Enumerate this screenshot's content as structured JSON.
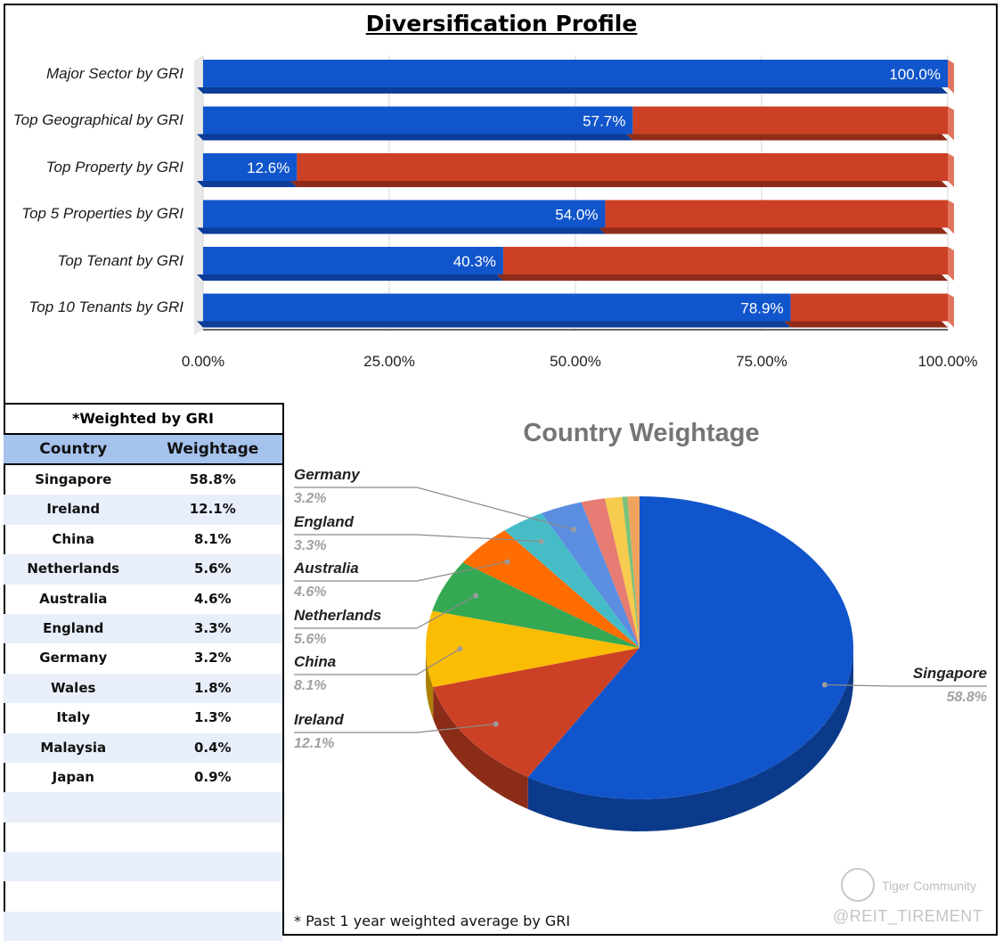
{
  "chart_data": [
    {
      "type": "bar",
      "title": "Diversification Profile",
      "orientation": "horizontal",
      "stacked": true,
      "categories": [
        "Major Sector by GRI",
        "Top Geographical by GRI",
        "Top Property by GRI",
        "Top 5 Properties by GRI",
        "Top Tenant by GRI",
        "Top 10 Tenants by GRI"
      ],
      "series": [
        {
          "values": [
            100.0,
            57.7,
            12.6,
            54.0,
            40.3,
            78.9
          ],
          "color": "#1155cc"
        },
        {
          "values": [
            0.0,
            42.3,
            87.4,
            46.0,
            59.7,
            21.1
          ],
          "color": "#cc4125"
        }
      ],
      "data_labels": [
        "100.0%",
        "57.7%",
        "12.6%",
        "54.0%",
        "40.3%",
        "78.9%"
      ],
      "xticks": [
        "0.00%",
        "25.00%",
        "50.00%",
        "75.00%",
        "100.00%"
      ],
      "xlim": [
        0,
        100
      ],
      "grid": true
    },
    {
      "type": "pie",
      "title": "Country Weightage",
      "style": "3d",
      "slices": [
        {
          "label": "Singapore",
          "value": 58.8,
          "text": "58.8%",
          "color": "#1155cc"
        },
        {
          "label": "Ireland",
          "value": 12.1,
          "text": "12.1%",
          "color": "#cc4125"
        },
        {
          "label": "China",
          "value": 8.1,
          "text": "8.1%",
          "color": "#fbbc04"
        },
        {
          "label": "Netherlands",
          "value": 5.6,
          "text": "5.6%",
          "color": "#34a853"
        },
        {
          "label": "Australia",
          "value": 4.6,
          "text": "4.6%",
          "color": "#ff6d01"
        },
        {
          "label": "England",
          "value": 3.3,
          "text": "3.3%",
          "color": "#46bdc6"
        },
        {
          "label": "Germany",
          "value": 3.2,
          "text": "3.2%",
          "color": "#5b8ee0"
        },
        {
          "label": "Wales",
          "value": 1.8,
          "color": "#e67c73"
        },
        {
          "label": "Italy",
          "value": 1.3,
          "color": "#f7cb4d"
        },
        {
          "label": "Malaysia",
          "value": 0.4,
          "color": "#7ac27a"
        },
        {
          "label": "Japan",
          "value": 0.9,
          "color": "#f0a35e"
        }
      ]
    }
  ],
  "table": {
    "note": "*Weighted by GRI",
    "headers": [
      "Country",
      "Weightage"
    ],
    "rows": [
      [
        "Singapore",
        "58.8%"
      ],
      [
        "Ireland",
        "12.1%"
      ],
      [
        "China",
        "8.1%"
      ],
      [
        "Netherlands",
        "5.6%"
      ],
      [
        "Australia",
        "4.6%"
      ],
      [
        "England",
        "3.3%"
      ],
      [
        "Germany",
        "3.2%"
      ],
      [
        "Wales",
        "1.8%"
      ],
      [
        "Italy",
        "1.3%"
      ],
      [
        "Malaysia",
        "0.4%"
      ],
      [
        "Japan",
        "0.9%"
      ]
    ],
    "empty_rows": 5
  },
  "footnote": "* Past 1 year weighted average by GRI",
  "watermark": {
    "brand": "Tiger Community",
    "handle": "@REIT_TIREMENT"
  }
}
